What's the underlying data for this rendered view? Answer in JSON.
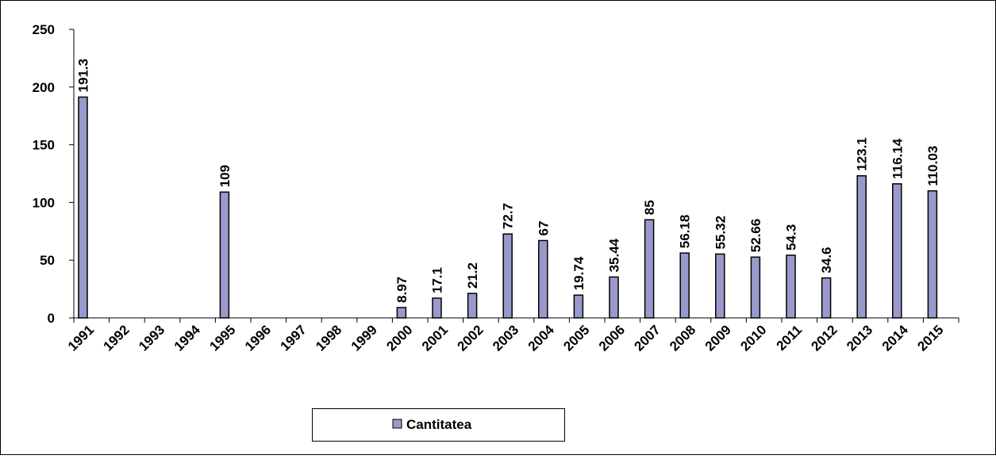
{
  "chart_data": {
    "type": "bar",
    "categories": [
      "1991",
      "1992",
      "1993",
      "1994",
      "1995",
      "1996",
      "1997",
      "1998",
      "1999",
      "2000",
      "2001",
      "2002",
      "2003",
      "2004",
      "2005",
      "2006",
      "2007",
      "2008",
      "2009",
      "2010",
      "2011",
      "2012",
      "2013",
      "2014",
      "2015"
    ],
    "series": [
      {
        "name": "Cantitatea",
        "color": "#9999cc",
        "values": [
          191.3,
          null,
          null,
          null,
          109,
          null,
          null,
          null,
          null,
          8.97,
          17.1,
          21.2,
          72.7,
          67,
          19.74,
          35.44,
          85,
          56.18,
          55.32,
          52.66,
          54.3,
          34.6,
          123.1,
          116.14,
          110.03
        ]
      }
    ],
    "ylim": [
      0,
      250
    ],
    "yticks": [
      0,
      50,
      100,
      150,
      200,
      250
    ],
    "grid": false,
    "legend": "bottom"
  }
}
